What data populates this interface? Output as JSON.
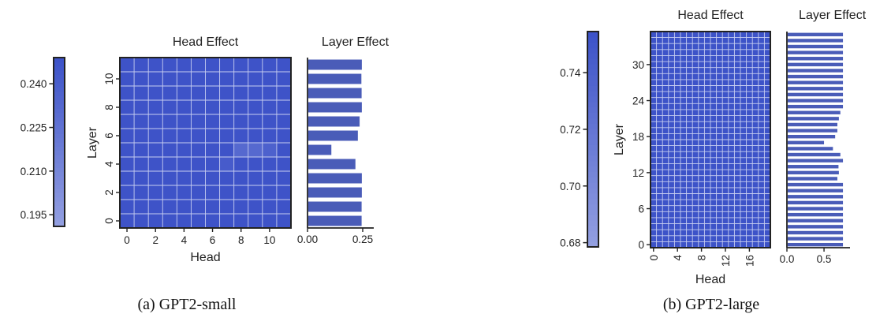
{
  "chart_data": [
    {
      "panel": "a",
      "caption": "(a) GPT2-small",
      "type": "heatmap",
      "colorbar": {
        "ticks": [
          "0.195",
          "0.210",
          "0.225",
          "0.240"
        ],
        "tick_values": [
          0.195,
          0.21,
          0.225,
          0.24
        ],
        "range": [
          0.191,
          0.249
        ]
      },
      "heatmap": {
        "title": "Head Effect",
        "xlabel": "Head",
        "ylabel": "Layer",
        "n_heads": 12,
        "n_layers": 12,
        "x_ticks": [
          "0",
          "2",
          "4",
          "6",
          "8",
          "10"
        ],
        "y_ticks": [
          "0",
          "2",
          "4",
          "6",
          "8",
          "10"
        ],
        "base_value": 0.248,
        "highlights": [
          {
            "layer": 5,
            "head": 8,
            "value": 0.232
          },
          {
            "layer": 5,
            "head": 9,
            "value": 0.232
          },
          {
            "layer": 5,
            "head": 10,
            "value": 0.238
          },
          {
            "layer": 4,
            "head": 7,
            "value": 0.242
          }
        ]
      },
      "bars": {
        "title": "Layer Effect",
        "type": "bar",
        "orientation": "horizontal",
        "x_ticks": [
          "0.00",
          "0.25"
        ],
        "x_tick_values": [
          0,
          0.25
        ],
        "xlim": [
          0,
          0.3
        ],
        "values": [
          0.245,
          0.245,
          0.246,
          0.246,
          0.217,
          0.108,
          0.228,
          0.236,
          0.246,
          0.245,
          0.244,
          0.246
        ]
      }
    },
    {
      "panel": "b",
      "caption": "(b) GPT2-large",
      "type": "heatmap",
      "colorbar": {
        "ticks": [
          "0.68",
          "0.70",
          "0.72",
          "0.74"
        ],
        "tick_values": [
          0.68,
          0.7,
          0.72,
          0.74
        ],
        "range": [
          0.6785,
          0.7545
        ]
      },
      "heatmap": {
        "title": "Head Effect",
        "xlabel": "Head",
        "ylabel": "Layer",
        "n_heads": 20,
        "n_layers": 36,
        "x_ticks": [
          "0",
          "4",
          "8",
          "12",
          "16"
        ],
        "y_ticks": [
          "0",
          "6",
          "12",
          "18",
          "24",
          "30"
        ],
        "base_value": 0.754,
        "highlights": []
      },
      "bars": {
        "title": "Layer Effect",
        "type": "bar",
        "orientation": "horizontal",
        "x_ticks": [
          "0.0",
          "0.5"
        ],
        "x_tick_values": [
          0,
          0.5
        ],
        "xlim": [
          0,
          0.85
        ],
        "values": [
          0.755,
          0.755,
          0.755,
          0.755,
          0.755,
          0.755,
          0.755,
          0.755,
          0.755,
          0.755,
          0.755,
          0.68,
          0.7,
          0.695,
          0.755,
          0.72,
          0.62,
          0.5,
          0.65,
          0.68,
          0.68,
          0.7,
          0.72,
          0.755,
          0.755,
          0.755,
          0.755,
          0.755,
          0.755,
          0.755,
          0.755,
          0.755,
          0.755,
          0.755,
          0.755,
          0.755
        ]
      }
    }
  ],
  "colors": {
    "cmap_low": "#ffffff",
    "cmap_high": "#3c52c8",
    "bar_fill": "#4a5cb8",
    "grid_line": "#c6cdf0",
    "axis_line": "#222222"
  }
}
